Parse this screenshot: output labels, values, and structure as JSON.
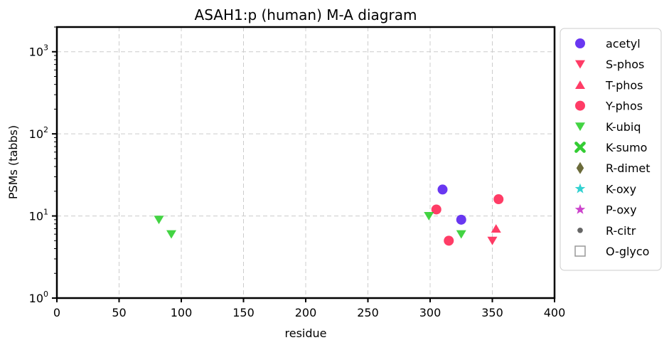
{
  "chart_data": {
    "type": "scatter",
    "title": "ASAH1:p (human) M-A diagram",
    "xlabel": "residue",
    "ylabel": "PSMs (tabbs)",
    "xlim": [
      0,
      400
    ],
    "ylim": [
      1,
      2000
    ],
    "yscale": "log",
    "grid": true,
    "legend_position": "outside right",
    "x_ticks": [
      "0",
      "50",
      "100",
      "150",
      "200",
      "250",
      "300",
      "350",
      "400"
    ],
    "y_ticks": [
      {
        "value": 1,
        "base": "10",
        "exp": "0"
      },
      {
        "value": 10,
        "base": "10",
        "exp": "1"
      },
      {
        "value": 100,
        "base": "10",
        "exp": "2"
      },
      {
        "value": 1000,
        "base": "10",
        "exp": "3"
      }
    ],
    "series": [
      {
        "name": "acetyl",
        "marker": "circle",
        "color": "#4f14ee",
        "points": [
          {
            "x": 310,
            "y": 21
          },
          {
            "x": 325,
            "y": 9
          }
        ]
      },
      {
        "name": "S-phos",
        "marker": "triangle-down",
        "color": "#ff1a4b",
        "points": [
          {
            "x": 350,
            "y": 5
          }
        ]
      },
      {
        "name": "T-phos",
        "marker": "triangle-up",
        "color": "#ff1a4b",
        "points": [
          {
            "x": 353,
            "y": 7
          }
        ]
      },
      {
        "name": "Y-phos",
        "marker": "circle",
        "color": "#ff1a4b",
        "points": [
          {
            "x": 305,
            "y": 12
          },
          {
            "x": 315,
            "y": 5
          },
          {
            "x": 355,
            "y": 16
          }
        ]
      },
      {
        "name": "K-ubiq",
        "marker": "triangle-down",
        "color": "#22cc22",
        "points": [
          {
            "x": 82,
            "y": 9
          },
          {
            "x": 92,
            "y": 6
          },
          {
            "x": 299,
            "y": 10
          },
          {
            "x": 325,
            "y": 6
          }
        ]
      },
      {
        "name": "K-sumo",
        "marker": "x",
        "color": "#33cc33",
        "points": []
      },
      {
        "name": "R-dimet",
        "marker": "diamond",
        "color": "#6b6b3a",
        "points": []
      },
      {
        "name": "K-oxy",
        "marker": "star",
        "color": "#33d1d1",
        "points": []
      },
      {
        "name": "P-oxy",
        "marker": "star",
        "color": "#cc44cc",
        "points": []
      },
      {
        "name": "R-citr",
        "marker": "dot",
        "color": "#666666",
        "points": []
      },
      {
        "name": "O-glyco",
        "marker": "square-open",
        "color": "#999999",
        "points": []
      }
    ]
  }
}
